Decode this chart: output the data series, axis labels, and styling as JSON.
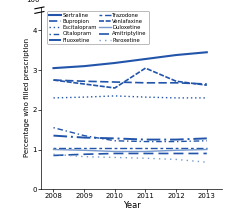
{
  "years": [
    2008,
    2009,
    2010,
    2011,
    2012,
    2013
  ],
  "series": {
    "Sertraline": [
      3.05,
      3.1,
      3.18,
      3.28,
      3.38,
      3.45
    ],
    "Bupropion": [
      2.75,
      2.72,
      2.7,
      2.68,
      2.68,
      2.65
    ],
    "Escitalopram": [
      2.3,
      2.32,
      2.35,
      2.32,
      2.3,
      2.3
    ],
    "Citalopram": [
      1.55,
      1.35,
      1.22,
      1.2,
      1.2,
      1.22
    ],
    "Fluoxetine": [
      1.35,
      1.3,
      1.28,
      1.25,
      1.25,
      1.28
    ],
    "Trazodone": [
      1.05,
      1.05,
      1.05,
      1.05,
      1.05,
      1.05
    ],
    "Venlafaxine": [
      2.75,
      2.65,
      2.55,
      3.05,
      2.72,
      2.62
    ],
    "Duloxetine": [
      1.0,
      0.98,
      0.95,
      0.95,
      0.98,
      1.0
    ],
    "Amitriptyline": [
      0.85,
      0.88,
      0.9,
      0.9,
      0.9,
      0.9
    ],
    "Paroxetine": [
      0.88,
      0.82,
      0.8,
      0.78,
      0.75,
      0.68
    ]
  },
  "ylim": [
    0,
    4.6
  ],
  "yticks": [
    0,
    1,
    2,
    3,
    4
  ],
  "ytick_labels": [
    "0",
    "1",
    "2",
    "3",
    "4"
  ],
  "ylabel": "Percentage who filled prescription",
  "xlabel": "Year",
  "bg_color": "#FFFFFF",
  "legend_col1": [
    "Sertraline",
    "Bupropion",
    "Escitalopram",
    "Citalopram",
    "Fluoxetine"
  ],
  "legend_col2": [
    "Trazodone",
    "Venlafaxine",
    "Duloxetine",
    "Amitriptyline",
    "Paroxetine"
  ]
}
